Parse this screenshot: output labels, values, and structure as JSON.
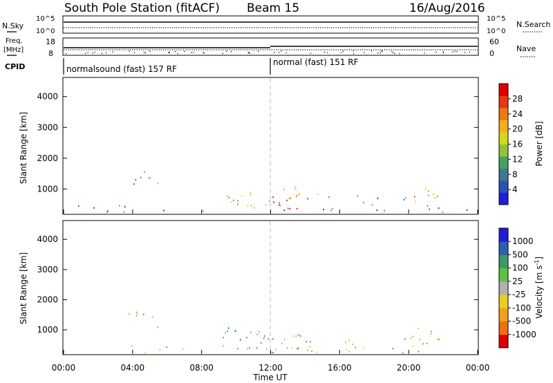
{
  "header": {
    "station": "South Pole Station (fitACF)",
    "beam": "Beam 15",
    "date": "16/Aug/2016"
  },
  "noise_panel": {
    "left_label": "N.Sky",
    "right_label": "N.Search",
    "left_ticks": [
      "10^5",
      "10^0"
    ],
    "right_ticks": [
      "10^5",
      "10^0"
    ]
  },
  "freq_panel": {
    "left_label_line1": "Freq.",
    "left_label_line2": "[MHz]",
    "right_label": "Nave",
    "left_ticks": [
      "18",
      "8"
    ],
    "right_ticks": [
      "60",
      "0"
    ]
  },
  "cpid": {
    "label": "CPID",
    "segments": [
      {
        "text": "normalsound (fast) 157 RF",
        "start_hour": 0
      },
      {
        "text": "normal (fast) 151 RF",
        "start_hour": 12
      }
    ]
  },
  "power_colorbar": {
    "label": "Power [dB]",
    "ticks": [
      "4",
      "8",
      "12",
      "16",
      "20",
      "24",
      "28"
    ]
  },
  "velocity_colorbar": {
    "label_main": "Velocity [m s",
    "label_sup": "-1",
    "label_end": "]",
    "ticks": [
      "-1000",
      "-500",
      "-100",
      "-25",
      "25",
      "100",
      "500",
      "1000"
    ]
  },
  "chart_data": [
    {
      "type": "heatmap",
      "name": "power",
      "ylabel": "Slant Range [km]",
      "yticks": [
        "1000",
        "2000",
        "3000",
        "4000"
      ],
      "ylim": [
        200,
        4600
      ],
      "xlim": [
        0,
        24
      ],
      "colorbar_range": [
        0,
        32
      ],
      "scatter_bands": [
        {
          "x0": 3.5,
          "x1": 5.5,
          "y0": 1100,
          "y1": 1650,
          "value": 10,
          "density": 0.5
        },
        {
          "x0": 9.0,
          "x1": 11.5,
          "y0": 400,
          "y1": 1100,
          "value": 14,
          "density": 0.55
        },
        {
          "x0": 11.0,
          "x1": 12.2,
          "y0": 400,
          "y1": 800,
          "value": 20,
          "density": 0.5
        },
        {
          "x0": 12.0,
          "x1": 14.5,
          "y0": 350,
          "y1": 800,
          "value": 28,
          "density": 0.85
        },
        {
          "x0": 12.5,
          "x1": 15.0,
          "y0": 600,
          "y1": 1200,
          "value": 18,
          "density": 0.4
        },
        {
          "x0": 15.0,
          "x1": 20.0,
          "y0": 300,
          "y1": 800,
          "value": 8,
          "density": 0.3
        },
        {
          "x0": 20.0,
          "x1": 22.0,
          "y0": 500,
          "y1": 1100,
          "value": 22,
          "density": 0.6
        },
        {
          "x0": 0.0,
          "x1": 24.0,
          "y0": 250,
          "y1": 500,
          "value": 6,
          "density": 0.25
        }
      ]
    },
    {
      "type": "heatmap",
      "name": "velocity",
      "ylabel": "Slant Range [km]",
      "yticks": [
        "1000",
        "2000",
        "3000",
        "4000"
      ],
      "ylim": [
        200,
        4600
      ],
      "xlim": [
        0,
        24
      ],
      "xticks": [
        "00:00",
        "04:00",
        "08:00",
        "12:00",
        "16:00",
        "20:00",
        "00:00"
      ],
      "xlabel": "Time UT",
      "scatter_bands": [
        {
          "x0": 3.5,
          "x1": 5.5,
          "y0": 1100,
          "y1": 1650,
          "value": -100,
          "density": 0.5
        },
        {
          "x0": 9.0,
          "x1": 11.5,
          "y0": 400,
          "y1": 1100,
          "value": 300,
          "density": 0.55
        },
        {
          "x0": 11.0,
          "x1": 14.5,
          "y0": 350,
          "y1": 900,
          "value": 150,
          "density": 0.8
        },
        {
          "x0": 15.0,
          "x1": 20.0,
          "y0": 300,
          "y1": 800,
          "value": -80,
          "density": 0.25
        },
        {
          "x0": 20.0,
          "x1": 22.0,
          "y0": 450,
          "y1": 1100,
          "value": -400,
          "density": 0.7
        },
        {
          "x0": 0.0,
          "x1": 24.0,
          "y0": 250,
          "y1": 500,
          "value": 10,
          "density": 0.25
        }
      ]
    }
  ]
}
